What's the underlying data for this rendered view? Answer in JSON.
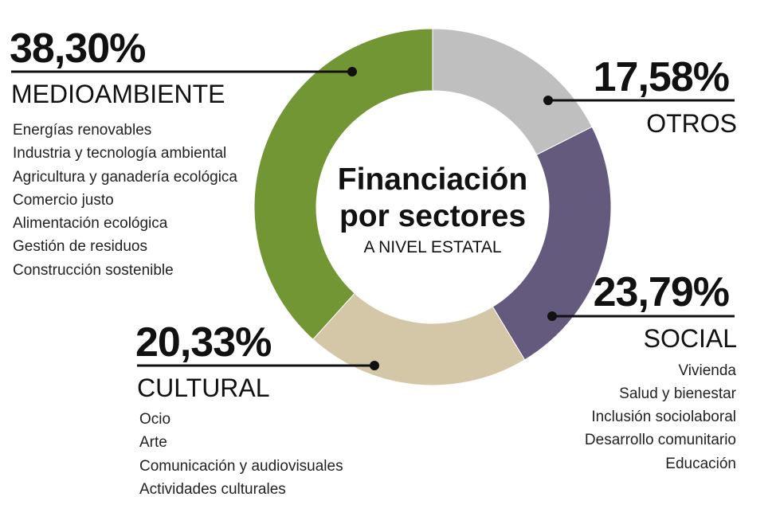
{
  "chart_data": {
    "type": "pie",
    "title": [
      "Financiación",
      "por sectores"
    ],
    "subtitle": "A NIVEL ESTATAL",
    "slices": [
      {
        "label": "OTROS",
        "value_label": "17,58%",
        "value": 17.58,
        "color": "#bfbfbf",
        "items": []
      },
      {
        "label": "SOCIAL",
        "value_label": "23,79%",
        "value": 23.79,
        "color": "#635a7d",
        "items": [
          "Vivienda",
          "Salud y bienestar",
          "Inclusión sociolaboral",
          "Desarrollo comunitario",
          "Educación"
        ]
      },
      {
        "label": "CULTURAL",
        "value_label": "20,33%",
        "value": 20.33,
        "color": "#d4c7a8",
        "items": [
          "Ocio",
          "Arte",
          "Comunicación y audiovisuales",
          "Actividades culturales"
        ]
      },
      {
        "label": "MEDIOAMBIENTE",
        "value_label": "38,30%",
        "value": 38.3,
        "color": "#729634",
        "items": [
          "Energías renovables",
          "Industria y tecnología ambiental",
          "Agricultura y ganadería ecológica",
          "Comercio justo",
          "Alimentación ecológica",
          "Gestión de residuos",
          "Construcción sostenible"
        ]
      }
    ]
  }
}
